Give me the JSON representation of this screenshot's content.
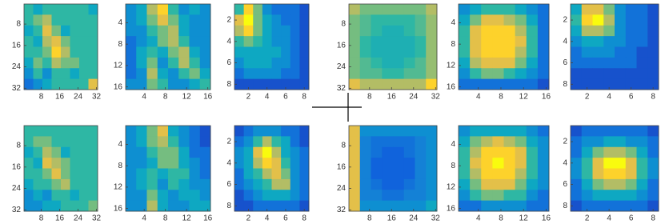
{
  "chart_data": [
    {
      "type": "heatmap",
      "xlim": [
        0.5,
        32.5
      ],
      "ylim": [
        0.5,
        32.5
      ],
      "xticks": [
        8,
        16,
        24,
        32
      ],
      "yticks": [
        8,
        16,
        24,
        32
      ],
      "values": [
        [
          0.5,
          0.4,
          0.5,
          0.5,
          0.5,
          0.5,
          0.5,
          0.4
        ],
        [
          0.5,
          0.6,
          0.7,
          0.5,
          0.5,
          0.5,
          0.5,
          0.5
        ],
        [
          0.4,
          0.5,
          0.8,
          0.6,
          0.4,
          0.5,
          0.5,
          0.5
        ],
        [
          0.5,
          0.4,
          0.7,
          0.8,
          0.6,
          0.5,
          0.5,
          0.5
        ],
        [
          0.5,
          0.5,
          0.6,
          0.9,
          0.7,
          0.5,
          0.5,
          0.5
        ],
        [
          0.4,
          0.6,
          0.5,
          0.7,
          0.6,
          0.6,
          0.5,
          0.5
        ],
        [
          0.3,
          0.5,
          0.3,
          0.5,
          0.5,
          0.4,
          0.5,
          0.5
        ],
        [
          0.2,
          0.3,
          0.4,
          0.5,
          0.5,
          0.5,
          0.5,
          0.8
        ]
      ]
    },
    {
      "type": "heatmap",
      "xlim": [
        0.5,
        16.5
      ],
      "ylim": [
        0.5,
        16.5
      ],
      "xticks": [
        4,
        8,
        12,
        16
      ],
      "yticks": [
        4,
        8,
        12,
        16
      ],
      "values": [
        [
          0.3,
          0.4,
          0.7,
          0.9,
          0.5,
          0.3,
          0.4,
          0.3
        ],
        [
          0.3,
          0.4,
          0.6,
          0.8,
          0.6,
          0.4,
          0.3,
          0.3
        ],
        [
          0.3,
          0.3,
          0.5,
          0.6,
          0.7,
          0.4,
          0.3,
          0.3
        ],
        [
          0.2,
          0.3,
          0.4,
          0.6,
          0.7,
          0.5,
          0.3,
          0.3
        ],
        [
          0.2,
          0.4,
          0.5,
          0.4,
          0.6,
          0.7,
          0.4,
          0.3
        ],
        [
          0.2,
          0.4,
          0.6,
          0.3,
          0.5,
          0.7,
          0.5,
          0.3
        ],
        [
          0.2,
          0.3,
          0.7,
          0.4,
          0.3,
          0.5,
          0.6,
          0.4
        ],
        [
          0.3,
          0.3,
          0.6,
          0.5,
          0.3,
          0.3,
          0.4,
          0.5
        ]
      ]
    },
    {
      "type": "heatmap",
      "xlim": [
        0.5,
        8.5
      ],
      "ylim": [
        0.5,
        8.5
      ],
      "xticks": [
        2,
        4,
        6,
        8
      ],
      "yticks": [
        2,
        4,
        6,
        8
      ],
      "values": [
        [
          0.5,
          0.9,
          0.6,
          0.3,
          0.2,
          0.2,
          0.2,
          0.1
        ],
        [
          0.8,
          1,
          0.6,
          0.4,
          0.3,
          0.2,
          0.2,
          0.1
        ],
        [
          0.7,
          0.9,
          0.6,
          0.4,
          0.3,
          0.3,
          0.2,
          0.1
        ],
        [
          0.5,
          0.6,
          0.5,
          0.4,
          0.3,
          0.3,
          0.2,
          0.1
        ],
        [
          0.4,
          0.4,
          0.4,
          0.4,
          0.4,
          0.3,
          0.2,
          0.1
        ],
        [
          0.3,
          0.4,
          0.4,
          0.4,
          0.3,
          0.3,
          0.2,
          0.1
        ],
        [
          0.2,
          0.3,
          0.3,
          0.3,
          0.3,
          0.2,
          0.2,
          0.1
        ],
        [
          0.1,
          0.1,
          0.1,
          0.1,
          0.1,
          0.1,
          0.1,
          0.1
        ]
      ]
    },
    {
      "type": "heatmap",
      "xlim": [
        0.5,
        32.5
      ],
      "ylim": [
        0.5,
        32.5
      ],
      "xticks": [
        8,
        16,
        24,
        32
      ],
      "yticks": [
        8,
        16,
        24,
        32
      ],
      "values": [
        [
          0.7,
          0.6,
          0.6,
          0.6,
          0.6,
          0.6,
          0.6,
          0.7
        ],
        [
          0.6,
          0.55,
          0.5,
          0.5,
          0.5,
          0.5,
          0.55,
          0.65
        ],
        [
          0.6,
          0.55,
          0.5,
          0.45,
          0.45,
          0.5,
          0.55,
          0.65
        ],
        [
          0.6,
          0.5,
          0.45,
          0.45,
          0.45,
          0.45,
          0.5,
          0.65
        ],
        [
          0.6,
          0.5,
          0.45,
          0.45,
          0.45,
          0.45,
          0.5,
          0.65
        ],
        [
          0.6,
          0.55,
          0.5,
          0.45,
          0.45,
          0.5,
          0.55,
          0.65
        ],
        [
          0.6,
          0.55,
          0.55,
          0.5,
          0.5,
          0.55,
          0.55,
          0.65
        ],
        [
          0.8,
          0.7,
          0.7,
          0.7,
          0.7,
          0.7,
          0.7,
          0.9
        ]
      ]
    },
    {
      "type": "heatmap",
      "xlim": [
        0.5,
        16.5
      ],
      "ylim": [
        0.5,
        16.5
      ],
      "xticks": [
        4,
        8,
        12,
        16
      ],
      "yticks": [
        4,
        8,
        12,
        16
      ],
      "values": [
        [
          0.3,
          0.4,
          0.5,
          0.5,
          0.5,
          0.4,
          0.3,
          0.2
        ],
        [
          0.4,
          0.6,
          0.8,
          0.8,
          0.7,
          0.6,
          0.4,
          0.2
        ],
        [
          0.5,
          0.8,
          0.9,
          0.9,
          0.9,
          0.7,
          0.5,
          0.2
        ],
        [
          0.5,
          0.8,
          0.9,
          0.9,
          0.9,
          0.8,
          0.5,
          0.2
        ],
        [
          0.5,
          0.8,
          0.9,
          0.9,
          0.9,
          0.7,
          0.5,
          0.2
        ],
        [
          0.4,
          0.7,
          0.8,
          0.8,
          0.8,
          0.6,
          0.4,
          0.2
        ],
        [
          0.3,
          0.5,
          0.6,
          0.6,
          0.5,
          0.4,
          0.3,
          0.2
        ],
        [
          0.2,
          0.2,
          0.2,
          0.2,
          0.2,
          0.2,
          0.2,
          0.1
        ]
      ]
    },
    {
      "type": "heatmap",
      "xlim": [
        0.5,
        8.5
      ],
      "ylim": [
        0.5,
        8.5
      ],
      "xticks": [
        2,
        4,
        6,
        8
      ],
      "yticks": [
        2,
        4,
        6,
        8
      ],
      "values": [
        [
          0.4,
          0.8,
          0.8,
          0.6,
          0.3,
          0.2,
          0.2,
          0.1
        ],
        [
          0.5,
          0.9,
          1,
          0.7,
          0.3,
          0.2,
          0.2,
          0.1
        ],
        [
          0.4,
          0.7,
          0.7,
          0.6,
          0.3,
          0.2,
          0.2,
          0.1
        ],
        [
          0.3,
          0.4,
          0.4,
          0.3,
          0.3,
          0.2,
          0.2,
          0.1
        ],
        [
          0.2,
          0.3,
          0.3,
          0.3,
          0.2,
          0.2,
          0.1,
          0.1
        ],
        [
          0.2,
          0.2,
          0.2,
          0.2,
          0.2,
          0.2,
          0.1,
          0.1
        ],
        [
          0.1,
          0.1,
          0.1,
          0.1,
          0.1,
          0.1,
          0.1,
          0.1
        ],
        [
          0.1,
          0.1,
          0.1,
          0.1,
          0.1,
          0.1,
          0.1,
          0.1
        ]
      ]
    },
    {
      "type": "heatmap",
      "xlim": [
        0.5,
        32.5
      ],
      "ylim": [
        0.5,
        32.5
      ],
      "xticks": [
        8,
        16,
        24,
        32
      ],
      "yticks": [
        8,
        16,
        24,
        32
      ],
      "values": [
        [
          0.5,
          0.5,
          0.5,
          0.5,
          0.5,
          0.5,
          0.5,
          0.5
        ],
        [
          0.5,
          0.6,
          0.6,
          0.5,
          0.5,
          0.5,
          0.5,
          0.5
        ],
        [
          0.4,
          0.5,
          0.7,
          0.6,
          0.4,
          0.5,
          0.5,
          0.5
        ],
        [
          0.5,
          0.4,
          0.8,
          0.7,
          0.6,
          0.5,
          0.5,
          0.5
        ],
        [
          0.5,
          0.5,
          0.6,
          0.8,
          0.6,
          0.5,
          0.5,
          0.5
        ],
        [
          0.4,
          0.5,
          0.5,
          0.6,
          0.7,
          0.5,
          0.5,
          0.5
        ],
        [
          0.3,
          0.4,
          0.3,
          0.5,
          0.5,
          0.4,
          0.5,
          0.5
        ],
        [
          0.3,
          0.3,
          0.4,
          0.4,
          0.5,
          0.5,
          0.5,
          0.6
        ]
      ]
    },
    {
      "type": "heatmap",
      "xlim": [
        0.5,
        16.5
      ],
      "ylim": [
        0.5,
        16.5
      ],
      "xticks": [
        4,
        8,
        12,
        16
      ],
      "yticks": [
        4,
        8,
        12,
        16
      ],
      "values": [
        [
          0.3,
          0.4,
          0.6,
          0.8,
          0.4,
          0.3,
          0.2,
          0.1
        ],
        [
          0.3,
          0.4,
          0.6,
          0.7,
          0.5,
          0.3,
          0.2,
          0.1
        ],
        [
          0.3,
          0.3,
          0.5,
          0.6,
          0.6,
          0.4,
          0.2,
          0.2
        ],
        [
          0.3,
          0.3,
          0.4,
          0.6,
          0.6,
          0.4,
          0.3,
          0.2
        ],
        [
          0.3,
          0.4,
          0.5,
          0.4,
          0.5,
          0.5,
          0.3,
          0.2
        ],
        [
          0.3,
          0.4,
          0.5,
          0.3,
          0.5,
          0.4,
          0.3,
          0.3
        ],
        [
          0.3,
          0.3,
          0.6,
          0.4,
          0.3,
          0.4,
          0.4,
          0.3
        ],
        [
          0.3,
          0.3,
          0.7,
          0.4,
          0.3,
          0.3,
          0.4,
          0.4
        ]
      ]
    },
    {
      "type": "heatmap",
      "xlim": [
        0.5,
        8.5
      ],
      "ylim": [
        0.5,
        8.5
      ],
      "xticks": [
        2,
        4,
        6,
        8
      ],
      "yticks": [
        2,
        4,
        6,
        8
      ],
      "values": [
        [
          0.1,
          0.2,
          0.3,
          0.3,
          0.3,
          0.2,
          0.2,
          0.1
        ],
        [
          0.2,
          0.3,
          0.5,
          0.7,
          0.5,
          0.4,
          0.2,
          0.1
        ],
        [
          0.3,
          0.4,
          0.8,
          1,
          0.7,
          0.4,
          0.3,
          0.2
        ],
        [
          0.3,
          0.4,
          0.7,
          0.9,
          0.8,
          0.5,
          0.3,
          0.2
        ],
        [
          0.2,
          0.4,
          0.5,
          0.7,
          0.8,
          0.6,
          0.3,
          0.2
        ],
        [
          0.2,
          0.3,
          0.4,
          0.5,
          0.7,
          0.7,
          0.3,
          0.2
        ],
        [
          0.1,
          0.2,
          0.3,
          0.4,
          0.4,
          0.4,
          0.3,
          0.2
        ],
        [
          0.1,
          0.1,
          0.2,
          0.2,
          0.2,
          0.2,
          0.2,
          0.1
        ]
      ]
    },
    {
      "type": "heatmap",
      "xlim": [
        0.5,
        32.5
      ],
      "ylim": [
        0.5,
        32.5
      ],
      "xticks": [
        8,
        16,
        24,
        32
      ],
      "yticks": [
        8,
        16,
        24,
        32
      ],
      "values": [
        [
          0.8,
          0.3,
          0.3,
          0.3,
          0.3,
          0.3,
          0.3,
          0.3
        ],
        [
          0.8,
          0.25,
          0.2,
          0.2,
          0.2,
          0.2,
          0.25,
          0.3
        ],
        [
          0.8,
          0.25,
          0.2,
          0.15,
          0.15,
          0.2,
          0.25,
          0.3
        ],
        [
          0.8,
          0.25,
          0.15,
          0.15,
          0.15,
          0.15,
          0.25,
          0.3
        ],
        [
          0.8,
          0.25,
          0.15,
          0.15,
          0.15,
          0.15,
          0.25,
          0.3
        ],
        [
          0.8,
          0.25,
          0.2,
          0.15,
          0.15,
          0.2,
          0.25,
          0.3
        ],
        [
          0.8,
          0.25,
          0.25,
          0.2,
          0.2,
          0.25,
          0.25,
          0.3
        ],
        [
          0.8,
          0.3,
          0.3,
          0.3,
          0.3,
          0.3,
          0.3,
          0.4
        ]
      ]
    },
    {
      "type": "heatmap",
      "xlim": [
        0.5,
        16.5
      ],
      "ylim": [
        0.5,
        16.5
      ],
      "xticks": [
        4,
        8,
        12,
        16
      ],
      "yticks": [
        4,
        8,
        12,
        16
      ],
      "values": [
        [
          0.3,
          0.4,
          0.4,
          0.4,
          0.4,
          0.4,
          0.3,
          0.2
        ],
        [
          0.4,
          0.6,
          0.7,
          0.8,
          0.7,
          0.6,
          0.4,
          0.3
        ],
        [
          0.5,
          0.7,
          0.9,
          0.9,
          0.9,
          0.8,
          0.5,
          0.3
        ],
        [
          0.5,
          0.8,
          0.9,
          1,
          0.9,
          0.8,
          0.5,
          0.3
        ],
        [
          0.5,
          0.7,
          0.9,
          0.9,
          0.9,
          0.7,
          0.5,
          0.3
        ],
        [
          0.4,
          0.6,
          0.8,
          0.8,
          0.8,
          0.6,
          0.4,
          0.3
        ],
        [
          0.3,
          0.5,
          0.6,
          0.6,
          0.5,
          0.5,
          0.3,
          0.2
        ],
        [
          0.2,
          0.2,
          0.3,
          0.3,
          0.3,
          0.3,
          0.2,
          0.2
        ]
      ]
    },
    {
      "type": "heatmap",
      "xlim": [
        0.5,
        8.5
      ],
      "ylim": [
        0.5,
        8.5
      ],
      "xticks": [
        2,
        4,
        6,
        8
      ],
      "yticks": [
        2,
        4,
        6,
        8
      ],
      "values": [
        [
          0.1,
          0.2,
          0.2,
          0.2,
          0.2,
          0.2,
          0.2,
          0.1
        ],
        [
          0.2,
          0.3,
          0.3,
          0.4,
          0.4,
          0.3,
          0.3,
          0.2
        ],
        [
          0.2,
          0.4,
          0.6,
          0.7,
          0.7,
          0.6,
          0.4,
          0.2
        ],
        [
          0.3,
          0.5,
          0.8,
          1,
          1,
          0.8,
          0.5,
          0.3
        ],
        [
          0.3,
          0.5,
          0.8,
          0.9,
          0.9,
          0.8,
          0.5,
          0.3
        ],
        [
          0.2,
          0.4,
          0.6,
          0.7,
          0.7,
          0.6,
          0.4,
          0.2
        ],
        [
          0.2,
          0.3,
          0.4,
          0.4,
          0.4,
          0.4,
          0.3,
          0.2
        ],
        [
          0.1,
          0.2,
          0.2,
          0.2,
          0.2,
          0.2,
          0.2,
          0.1
        ]
      ]
    }
  ]
}
